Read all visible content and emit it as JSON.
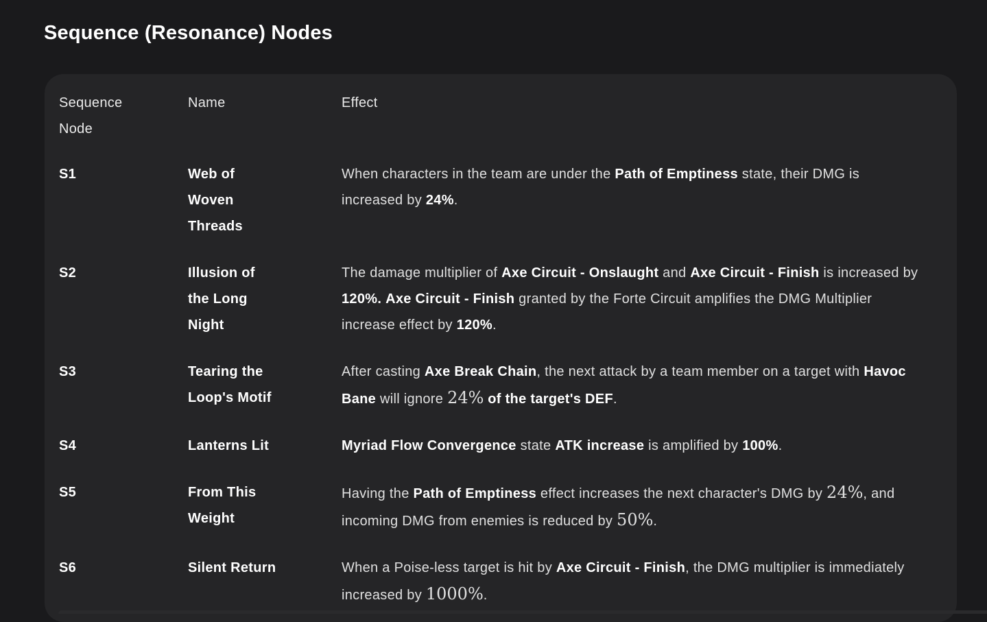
{
  "page": {
    "title": "Sequence (Resonance) Nodes"
  },
  "theme": {
    "page_bg": "#1a1a1c",
    "card_bg": "#252527",
    "title_color": "#ffffff",
    "header_text": "#ebebeb",
    "body_text": "#e0e0e0",
    "bold_text": "#ffffff",
    "strip_bg": "#2a2a2c"
  },
  "table": {
    "headers": [
      "Sequence Node",
      "Name",
      "Effect"
    ],
    "rows": [
      {
        "node": "S1",
        "name": "Web of Woven Threads",
        "effect": [
          {
            "t": "When characters in the team are under the "
          },
          {
            "t": "Path of Emptiness",
            "b": true
          },
          {
            "t": " state, their DMG is increased by "
          },
          {
            "t": "24%",
            "b": true
          },
          {
            "t": "."
          }
        ]
      },
      {
        "node": "S2",
        "name": "Illusion of the Long Night",
        "effect": [
          {
            "t": "The damage multiplier of "
          },
          {
            "t": "Axe Circuit - Onslaught",
            "b": true
          },
          {
            "t": " and "
          },
          {
            "t": "Axe Circuit - Finish",
            "b": true
          },
          {
            "t": " is increased by "
          },
          {
            "t": "120%.",
            "b": true
          },
          {
            "t": " "
          },
          {
            "t": "Axe Circuit - Finish",
            "b": true
          },
          {
            "t": " granted by the Forte Circuit amplifies the DMG Multiplier increase effect by "
          },
          {
            "t": "120%",
            "b": true
          },
          {
            "t": "."
          }
        ]
      },
      {
        "node": "S3",
        "name": "Tearing the Loop's Motif",
        "effect": [
          {
            "t": "After casting "
          },
          {
            "t": "Axe Break Chain",
            "b": true
          },
          {
            "t": ", the next attack by a team member on a target with "
          },
          {
            "t": "Havoc Bane",
            "b": true
          },
          {
            "t": " will ignore "
          },
          {
            "t": "24%",
            "m": true
          },
          {
            "t": " "
          },
          {
            "t": "of the target's DEF",
            "b": true
          },
          {
            "t": "."
          }
        ]
      },
      {
        "node": "S4",
        "name": "Lanterns Lit",
        "effect": [
          {
            "t": "Myriad Flow Convergence",
            "b": true
          },
          {
            "t": " state "
          },
          {
            "t": "ATK increase",
            "b": true
          },
          {
            "t": " is amplified by "
          },
          {
            "t": "100%",
            "b": true
          },
          {
            "t": "."
          }
        ]
      },
      {
        "node": "S5",
        "name": "From This Weight",
        "effect": [
          {
            "t": "Having the "
          },
          {
            "t": "Path of Emptiness",
            "b": true
          },
          {
            "t": " effect increases the next character's DMG by "
          },
          {
            "t": "24%",
            "m": true
          },
          {
            "t": ", and incoming DMG from enemies is reduced by "
          },
          {
            "t": "50%",
            "m": true
          },
          {
            "t": "."
          }
        ]
      },
      {
        "node": "S6",
        "name": "Silent Return",
        "effect": [
          {
            "t": "When a Poise-less target is hit by "
          },
          {
            "t": "Axe Circuit - Finish",
            "b": true
          },
          {
            "t": ", the DMG multiplier is immediately increased by "
          },
          {
            "t": "1000%",
            "m": true
          },
          {
            "t": "."
          }
        ]
      }
    ]
  }
}
